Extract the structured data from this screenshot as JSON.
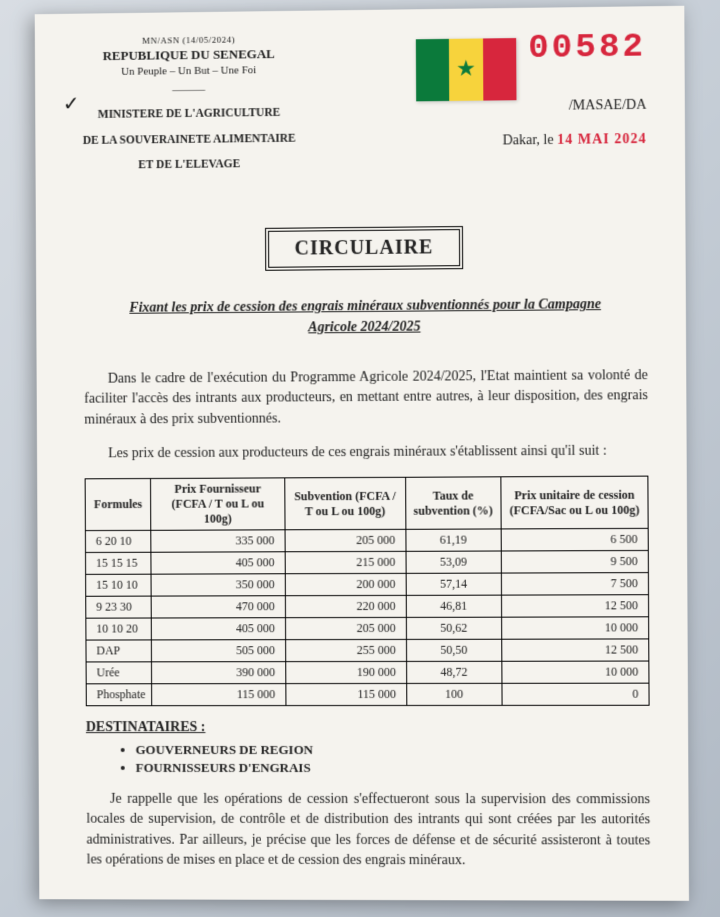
{
  "letterhead": {
    "ref": "MN/ASN (14/05/2024)",
    "country": "REPUBLIQUE DU SENEGAL",
    "motto": "Un Peuple – Un But – Une Foi",
    "ministry_l1": "MINISTERE DE L'AGRICULTURE",
    "ministry_l2": "DE LA SOUVERAINETE ALIMENTAIRE",
    "ministry_l3": "ET DE L'ELEVAGE"
  },
  "stamp": {
    "number": "00582",
    "suffix": "/MASAE/DA",
    "city_prefix": "Dakar, le ",
    "date": "14 MAI 2024",
    "flag_colors": {
      "green": "#0b7a3b",
      "yellow": "#f7d33c",
      "red": "#d7263d"
    }
  },
  "title": "CIRCULAIRE",
  "subtitle": "Fixant les prix de cession des engrais minéraux subventionnés pour la Campagne Agricole 2024/2025",
  "para1": "Dans le cadre de l'exécution du Programme Agricole 2024/2025, l'Etat maintient sa volonté de faciliter l'accès des intrants aux producteurs, en mettant entre autres, à leur disposition, des engrais minéraux à des prix subventionnés.",
  "para2": "Les prix de cession aux producteurs de ces engrais minéraux s'établissent ainsi qu'il suit :",
  "table": {
    "type": "table",
    "columns": [
      "Formules",
      "Prix Fournisseur (FCFA / T ou L ou 100g)",
      "Subvention (FCFA / T ou L ou 100g)",
      "Taux de subvention (%)",
      "Prix unitaire de cession (FCFA/Sac ou L ou 100g)"
    ],
    "rows": [
      [
        "6 20 10",
        "335 000",
        "205 000",
        "61,19",
        "6 500"
      ],
      [
        "15 15 15",
        "405 000",
        "215 000",
        "53,09",
        "9 500"
      ],
      [
        "15 10 10",
        "350 000",
        "200 000",
        "57,14",
        "7 500"
      ],
      [
        "9 23 30",
        "470 000",
        "220 000",
        "46,81",
        "12 500"
      ],
      [
        "10 10 20",
        "405 000",
        "205 000",
        "50,62",
        "10 000"
      ],
      [
        "DAP",
        "505 000",
        "255 000",
        "50,50",
        "12 500"
      ],
      [
        "Urée",
        "390 000",
        "190 000",
        "48,72",
        "10 000"
      ],
      [
        "Phosphate",
        "115 000",
        "115 000",
        "100",
        "0"
      ]
    ],
    "border_color": "#000000",
    "header_fontweight": "bold",
    "fontsize_pt": 12,
    "col_align": [
      "left",
      "right",
      "right",
      "center",
      "right"
    ]
  },
  "dest_heading": "DESTINATAIRES :",
  "destinations": [
    "GOUVERNEURS DE REGION",
    "FOURNISSEURS D'ENGRAIS"
  ],
  "para3": "Je rappelle que les opérations de cession s'effectueront sous la supervision des commissions locales de supervision, de contrôle et de distribution des intrants qui sont créées par les autorités administratives. Par ailleurs, je précise que les forces de défense et de sécurité assisteront à toutes les opérations de mises en place et de cession des engrais minéraux."
}
